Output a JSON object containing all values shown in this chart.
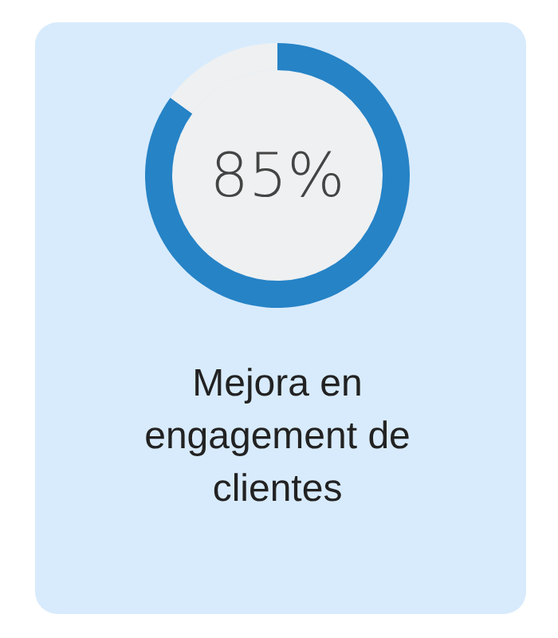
{
  "chart_data": {
    "type": "donut",
    "title": "Mejora en engagement de clientes",
    "categories": [
      null,
      null
    ],
    "values": [
      85,
      15
    ],
    "colors": [
      "#2683c6",
      "#eef0f1"
    ],
    "value_labels": [
      "85%",
      null
    ]
  }
}
